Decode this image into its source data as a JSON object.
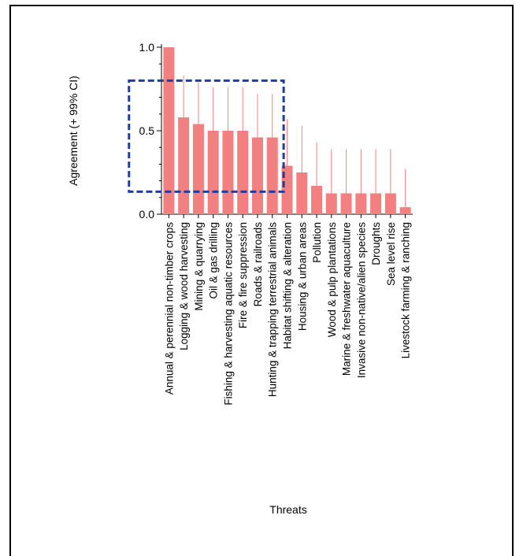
{
  "chart_data": {
    "type": "bar",
    "xlabel": "Threats",
    "ylabel": "Agreement (+ 99% CI)",
    "ylim": [
      0,
      1.0
    ],
    "yticks": [
      0.0,
      0.5,
      1.0
    ],
    "ytick_labels": [
      "0.0",
      "0.5",
      "1.0"
    ],
    "grid": false,
    "categories": [
      "Annual & perennial non-timber crops",
      "Logging & wood harvesting",
      "Mining & quarrying",
      "Oil & gas drilling",
      "Fishing & harvesting aquatic resources",
      "Fire & fire suppression",
      "Roads & railroads",
      "Hunting & trapping terrestrial animals",
      "Habitat shifting & alteration",
      "Housing & urban areas",
      "Pollution",
      "Wood & pulp plantations",
      "Marine & freshwater aquaculture",
      "Invasive non-native/alien species",
      "Droughts",
      "Sea level rise",
      "Livestock farming & ranching"
    ],
    "values": [
      1.0,
      0.58,
      0.54,
      0.5,
      0.5,
      0.5,
      0.46,
      0.46,
      0.29,
      0.25,
      0.17,
      0.125,
      0.125,
      0.125,
      0.125,
      0.125,
      0.042
    ],
    "ci_upper": [
      1.0,
      0.83,
      0.79,
      0.76,
      0.76,
      0.76,
      0.72,
      0.72,
      0.57,
      0.53,
      0.43,
      0.39,
      0.39,
      0.39,
      0.39,
      0.39,
      0.27
    ],
    "bar_color": "#f28080",
    "highlight": {
      "style": "dashed rectangle",
      "color": "#1f3f99",
      "x_range": [
        "Logging & wood harvesting",
        "Hunting & trapping terrestrial animals"
      ],
      "y_range": [
        0.135,
        0.8
      ]
    }
  }
}
